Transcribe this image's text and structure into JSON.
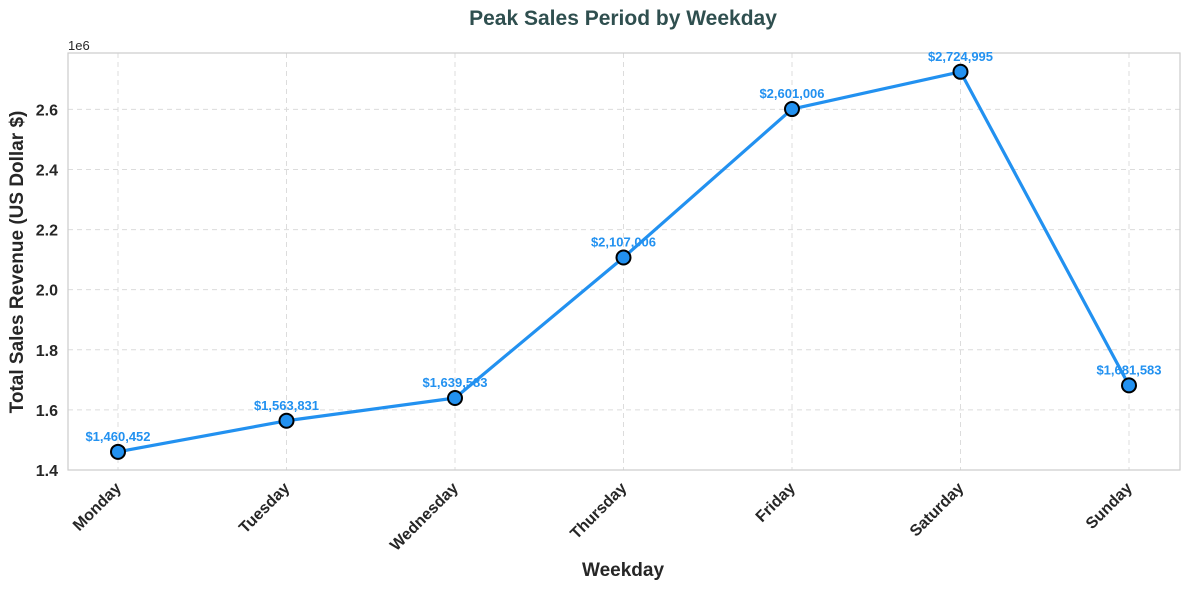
{
  "chart_data": {
    "type": "line",
    "title": "Peak Sales Period by Weekday",
    "xlabel": "Weekday",
    "ylabel": "Total Sales Revenue (US Dollar $)",
    "y_offset_label": "1e6",
    "categories": [
      "Monday",
      "Tuesday",
      "Wednesday",
      "Thursday",
      "Friday",
      "Saturday",
      "Sunday"
    ],
    "values": [
      1460452,
      1563831,
      1639583,
      2107006,
      2601006,
      2724995,
      1681583
    ],
    "data_labels": [
      "$1,460,452",
      "$1,563,831",
      "$1,639,583",
      "$2,107,006",
      "$2,601,006",
      "$2,724,995",
      "$1,681,583"
    ],
    "ylim": [
      1400000,
      2787500
    ],
    "yticks": [
      1400000,
      1600000,
      1800000,
      2000000,
      2200000,
      2400000,
      2600000
    ],
    "ytick_labels": [
      "1.4",
      "1.6",
      "1.8",
      "2.0",
      "2.2",
      "2.4",
      "2.6"
    ],
    "grid": true,
    "legend": "none",
    "colors": {
      "line": "#2291f0",
      "marker_edge": "#000000",
      "title": "#2f4f4f",
      "text": "#262626"
    }
  }
}
